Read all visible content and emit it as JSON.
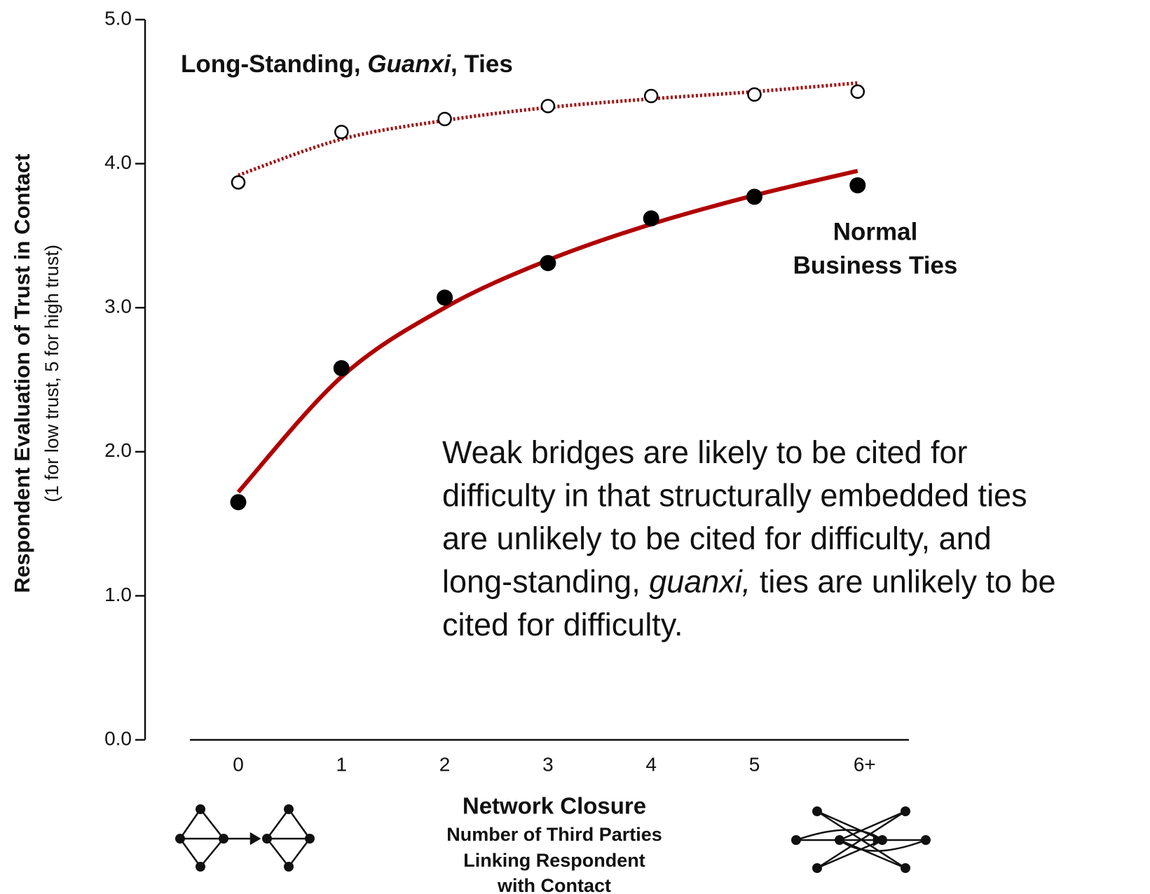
{
  "chart_data": {
    "type": "scatter",
    "y_title": "Respondent Evaluation of Trust in Contact",
    "y_subtitle": "(1 for low trust, 5 for high trust)",
    "x_title": "Network Closure",
    "x_subtitle": [
      "Number of Third Parties",
      "Linking Respondent",
      "with Contact"
    ],
    "categories": [
      "0",
      "1",
      "2",
      "3",
      "4",
      "5",
      "6+"
    ],
    "ylim": [
      0,
      5
    ],
    "yticks": [
      {
        "value": 0,
        "label": "0.0"
      },
      {
        "value": 1,
        "label": "1.0"
      },
      {
        "value": 2,
        "label": "2.0"
      },
      {
        "value": 3,
        "label": "3.0"
      },
      {
        "value": 4,
        "label": "4.0"
      },
      {
        "value": 5,
        "label": "5.0"
      }
    ],
    "series": [
      {
        "marker": "open",
        "color": "#000000",
        "values": [
          3.87,
          4.22,
          4.31,
          4.4,
          4.47,
          4.48,
          4.5
        ]
      },
      {
        "marker": "filled",
        "color": "#000000",
        "values": [
          1.65,
          2.58,
          3.07,
          3.31,
          3.62,
          3.77,
          3.85
        ]
      }
    ],
    "fits": [
      {
        "style": "dotted",
        "color": "#a30f0f",
        "values": [
          3.92,
          4.17,
          4.3,
          4.39,
          4.45,
          4.5,
          4.56
        ]
      },
      {
        "style": "solid",
        "color": "#b00000",
        "values": [
          1.72,
          2.52,
          3.0,
          3.33,
          3.58,
          3.78,
          3.95
        ]
      }
    ],
    "annotations": {
      "guanxi": [
        {
          "text": "Long-Standing, "
        },
        {
          "text": "Guanxi",
          "italic": true
        },
        {
          "text": ", Ties"
        }
      ],
      "normal": [
        "Normal",
        "Business Ties"
      ],
      "note": [
        [
          {
            "text": "Weak bridges are likely to be cited for"
          }
        ],
        [
          {
            "text": "difficulty in that structurally embedded ties"
          }
        ],
        [
          {
            "text": "are unlikely to be cited for difficulty, and"
          }
        ],
        [
          {
            "text": "long-standing, "
          },
          {
            "text": "guanxi,",
            "italic": true
          },
          {
            "text": " ties are unlikely to be"
          }
        ],
        [
          {
            "text": "cited for difficulty."
          }
        ]
      ]
    }
  }
}
